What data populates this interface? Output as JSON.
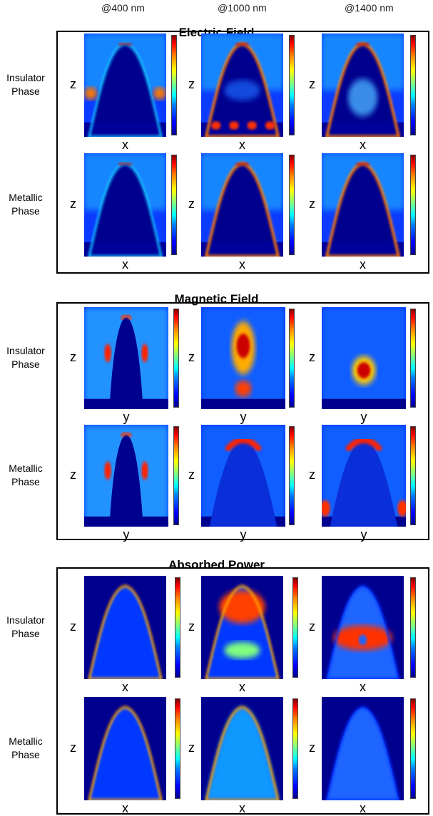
{
  "columns": [
    "@400 nm",
    "@1000 nm",
    "@1400 nm"
  ],
  "sections": [
    {
      "title": "Electric Field",
      "xaxis": "x",
      "rows": [
        {
          "label": [
            "Insulator",
            "Phase"
          ]
        },
        {
          "label": [
            "Metallic",
            "Phase"
          ]
        }
      ]
    },
    {
      "title": "Magnetic Field",
      "xaxis": "y",
      "rows": [
        {
          "label": [
            "Insulator",
            "Phase"
          ]
        },
        {
          "label": [
            "Metallic",
            "Phase"
          ]
        }
      ]
    },
    {
      "title": "Absorbed Power",
      "xaxis": "x",
      "rows": [
        {
          "label": [
            "Insulator",
            "Phase"
          ]
        },
        {
          "label": [
            "Metallic",
            "Phase"
          ]
        }
      ]
    }
  ],
  "zaxis": "z",
  "colormap": [
    "#00008f",
    "#0000ff",
    "#00ffff",
    "#ffff00",
    "#ff0000",
    "#800000"
  ]
}
